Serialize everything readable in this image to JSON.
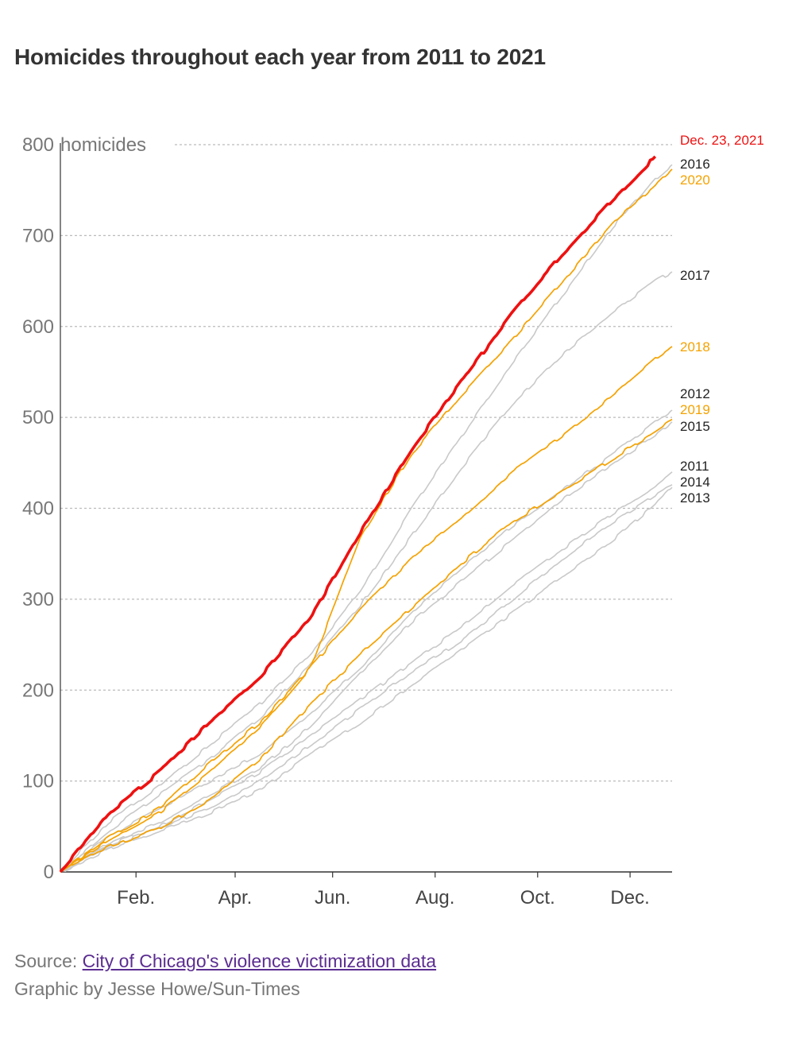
{
  "title": "Homicides throughout each year from 2011 to 2021",
  "source": {
    "prefix": "Source: ",
    "link_text": "City of Chicago's violence victimization data"
  },
  "credit": "Graphic by Jesse Howe/Sun-Times",
  "colors": {
    "highlight": "#ee1111",
    "orange": "#f5a200",
    "gray": "#c9c9c9",
    "axis_text": "#777777",
    "grid": "#bbbbbb",
    "label_black": "#222222"
  },
  "chart_data": {
    "type": "line",
    "title": "Homicides throughout each year from 2011 to 2021",
    "xlabel": "",
    "ylabel": "homicides",
    "y_unit_label": "homicides",
    "ylim": [
      0,
      800
    ],
    "xlim": [
      1,
      365
    ],
    "y_ticks": [
      0,
      100,
      200,
      300,
      400,
      500,
      600,
      700,
      800
    ],
    "x_ticks": [
      {
        "label": "Feb.",
        "day": 46
      },
      {
        "label": "Apr.",
        "day": 105
      },
      {
        "label": "Jun.",
        "day": 163
      },
      {
        "label": "Aug.",
        "day": 224
      },
      {
        "label": "Oct.",
        "day": 285
      },
      {
        "label": "Dec.",
        "day": 340
      }
    ],
    "grid": true,
    "x_points": [
      1,
      30,
      60,
      90,
      120,
      150,
      180,
      210,
      240,
      270,
      300,
      330,
      355,
      365
    ],
    "series": [
      {
        "name": "2011",
        "label": "2011",
        "color": "gray",
        "values": [
          0,
          30,
          50,
          80,
          110,
          150,
          190,
          230,
          270,
          315,
          355,
          395,
          425,
          440
        ]
      },
      {
        "name": "2012",
        "label": "2012",
        "color": "gray",
        "values": [
          0,
          40,
          70,
          100,
          130,
          175,
          225,
          285,
          335,
          380,
          420,
          460,
          495,
          508
        ]
      },
      {
        "name": "2013",
        "label": "2013",
        "color": "gray",
        "values": [
          0,
          25,
          45,
          65,
          90,
          130,
          165,
          205,
          245,
          285,
          325,
          365,
          405,
          423
        ]
      },
      {
        "name": "2014",
        "label": "2014",
        "color": "gray",
        "values": [
          0,
          28,
          48,
          70,
          100,
          140,
          180,
          220,
          255,
          300,
          345,
          385,
          415,
          426
        ]
      },
      {
        "name": "2015",
        "label": "2015",
        "color": "gray",
        "values": [
          0,
          32,
          55,
          85,
          115,
          160,
          220,
          275,
          320,
          365,
          410,
          450,
          480,
          495
        ]
      },
      {
        "name": "2016",
        "label": "2016",
        "color": "gray",
        "values": [
          0,
          55,
          95,
          140,
          185,
          240,
          310,
          400,
          480,
          560,
          635,
          710,
          762,
          778
        ]
      },
      {
        "name": "2017",
        "label": "2017",
        "color": "gray",
        "values": [
          0,
          45,
          85,
          125,
          170,
          230,
          295,
          370,
          445,
          515,
          570,
          615,
          650,
          660
        ]
      },
      {
        "name": "2018",
        "label": "2018",
        "color": "orange",
        "values": [
          0,
          35,
          65,
          110,
          160,
          225,
          290,
          345,
          390,
          440,
          480,
          525,
          565,
          578
        ]
      },
      {
        "name": "2019",
        "label": "2019",
        "color": "orange",
        "values": [
          0,
          28,
          48,
          80,
          125,
          185,
          240,
          290,
          340,
          385,
          420,
          455,
          485,
          498
        ]
      },
      {
        "name": "2020",
        "label": "2020",
        "color": "orange",
        "values": [
          0,
          38,
          70,
          120,
          165,
          225,
          370,
          460,
          525,
          585,
          650,
          715,
          755,
          773
        ]
      },
      {
        "name": "2021",
        "label": "Dec. 23, 2021",
        "color": "highlight",
        "values": [
          0,
          65,
          110,
          165,
          215,
          280,
          375,
          465,
          540,
          615,
          680,
          740,
          787
        ]
      }
    ]
  }
}
